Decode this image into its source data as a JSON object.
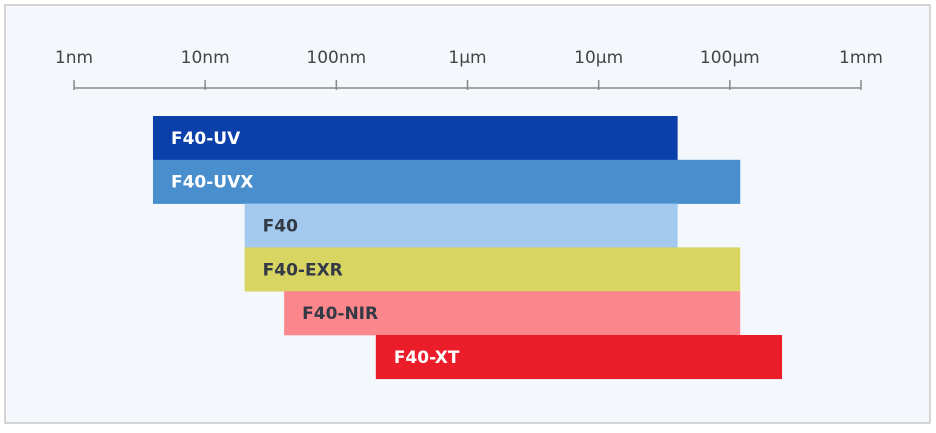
{
  "chart_data": {
    "type": "range-bar",
    "log_x": true,
    "xlim": [
      1,
      1000000
    ],
    "xticks": [
      {
        "value": 1,
        "label": "1nm"
      },
      {
        "value": 10,
        "label": "10nm"
      },
      {
        "value": 100,
        "label": "100nm"
      },
      {
        "value": 1000,
        "label": "1µm"
      },
      {
        "value": 10000,
        "label": "10µm"
      },
      {
        "value": 100000,
        "label": "100µm"
      },
      {
        "value": 1000000,
        "label": "1mm"
      }
    ],
    "categories": [
      "F40-UV",
      "F40-UVX",
      "F40",
      "F40-EXR",
      "F40-NIR",
      "F40-XT"
    ],
    "low": [
      4,
      4,
      20,
      20,
      40,
      200
    ],
    "high": [
      40000,
      120000,
      40000,
      120000,
      120000,
      250000
    ],
    "colors": [
      "#0b3fa9",
      "#4a8fcd",
      "#a3caee",
      "#d8d563",
      "#fb878c",
      "#ec1d2b"
    ],
    "text_colors": [
      "#ffffff",
      "#ffffff",
      "#333a45",
      "#333a45",
      "#333a45",
      "#ffffff"
    ]
  }
}
